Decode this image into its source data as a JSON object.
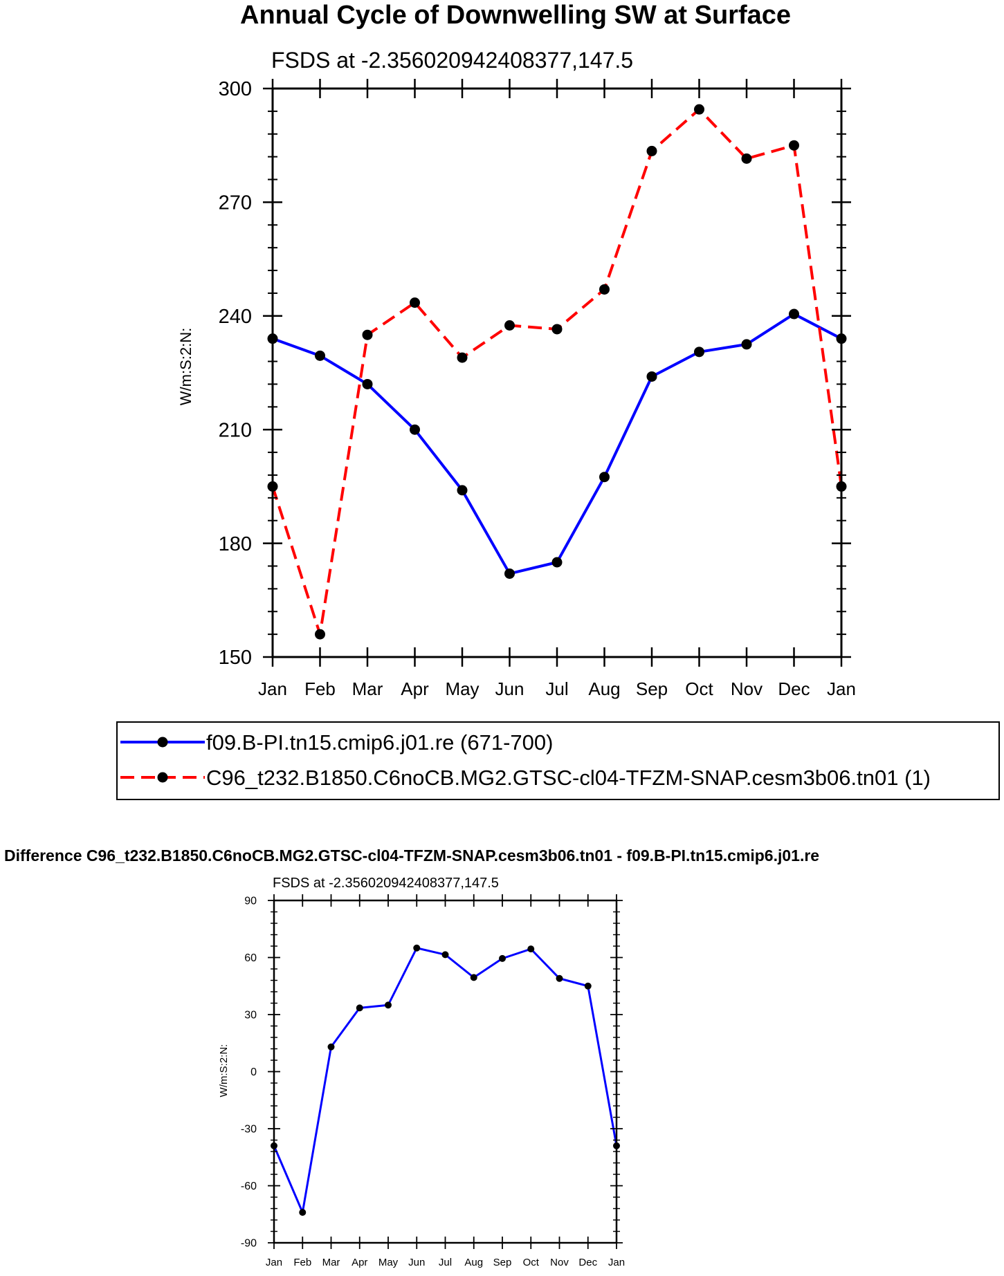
{
  "chart_data": [
    {
      "type": "line",
      "title": "Annual Cycle of Downwelling SW at Surface",
      "subtitle": "FSDS at -2.356020942408377,147.5",
      "ylabel": "W/m:S:2:N:",
      "xlabel": "",
      "ylim": [
        150,
        300
      ],
      "yticks": [
        150,
        180,
        210,
        240,
        270,
        300
      ],
      "categories": [
        "Jan",
        "Feb",
        "Mar",
        "Apr",
        "May",
        "Jun",
        "Jul",
        "Aug",
        "Sep",
        "Oct",
        "Nov",
        "Dec",
        "Jan"
      ],
      "legend_position": "below",
      "series": [
        {
          "name": "f09.B-PI.tn15.cmip6.j01.re (671-700)",
          "color": "#0000ff",
          "dash": "solid",
          "values": [
            234,
            229.5,
            222,
            210,
            194,
            172,
            175,
            197.5,
            224,
            230.5,
            232.5,
            240.5,
            234
          ]
        },
        {
          "name": "C96_t232.B1850.C6noCB.MG2.GTSC-cl04-TFZM-SNAP.cesm3b06.tn01 (1)",
          "color": "#ff0000",
          "dash": "dashed",
          "values": [
            195,
            156,
            235,
            243.5,
            229,
            237.5,
            236.5,
            247,
            283.5,
            294.5,
            281.5,
            285,
            195
          ]
        }
      ]
    },
    {
      "type": "line",
      "title": "Difference C96_t232.B1850.C6noCB.MG2.GTSC-cl04-TFZM-SNAP.cesm3b06.tn01 - f09.B-PI.tn15.cmip6.j01.re",
      "subtitle": "FSDS at -2.356020942408377,147.5",
      "ylabel": "W/m:S:2:N:",
      "xlabel": "",
      "ylim": [
        -90,
        90
      ],
      "yticks": [
        -90,
        -60,
        -30,
        0,
        30,
        60,
        90
      ],
      "categories": [
        "Jan",
        "Feb",
        "Mar",
        "Apr",
        "May",
        "Jun",
        "Jul",
        "Aug",
        "Sep",
        "Oct",
        "Nov",
        "Dec",
        "Jan"
      ],
      "series": [
        {
          "name": "Difference",
          "color": "#0000ff",
          "dash": "solid",
          "values": [
            -39,
            -74,
            13,
            33.5,
            35,
            65,
            61.5,
            49.5,
            59.5,
            64.5,
            49,
            45,
            -39
          ]
        }
      ]
    }
  ]
}
